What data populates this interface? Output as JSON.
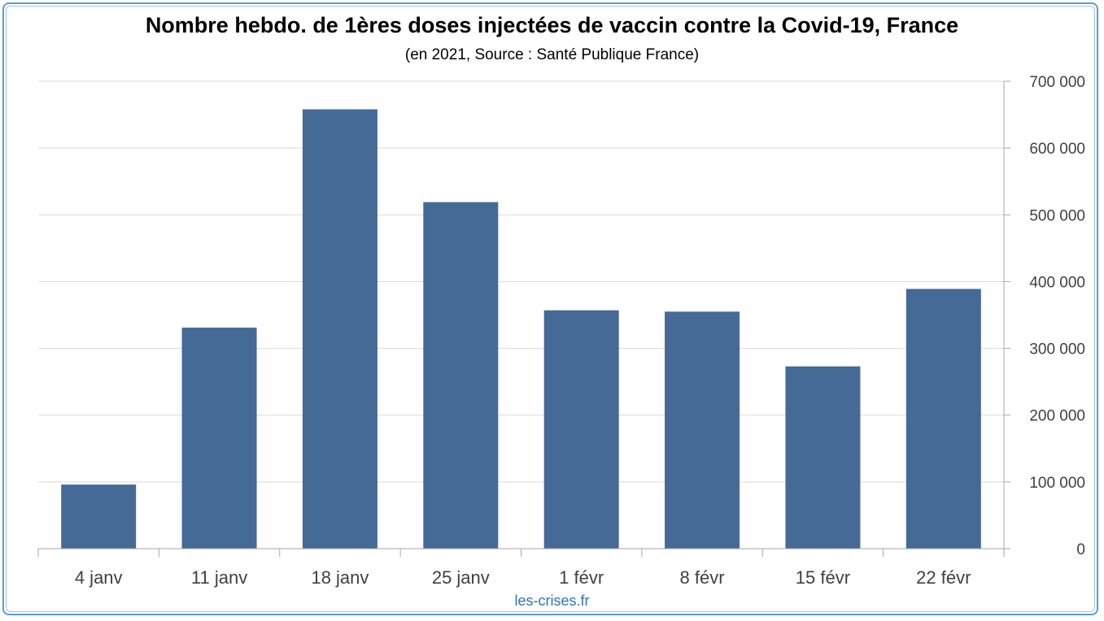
{
  "chart_data": {
    "type": "bar",
    "title": "Nombre hebdo. de 1ères doses injectées de vaccin contre la Covid-19, France",
    "subtitle": "(en 2021, Source : Santé Publique France)",
    "categories": [
      "4 janv",
      "11 janv",
      "18 janv",
      "25 janv",
      "1 févr",
      "8 févr",
      "15 févr",
      "22 févr"
    ],
    "values": [
      96000,
      331000,
      658000,
      519000,
      357000,
      355000,
      273000,
      389000
    ],
    "ylim": [
      0,
      700000
    ],
    "yticks": [
      0,
      100000,
      200000,
      300000,
      400000,
      500000,
      600000,
      700000
    ],
    "ytick_labels": [
      "0",
      "100 000",
      "200 000",
      "300 000",
      "400 000",
      "500 000",
      "600 000",
      "700 000"
    ],
    "y_axis_side": "right",
    "grid": true,
    "bar_color": "#466a96"
  },
  "credit": "les-crises.fr"
}
